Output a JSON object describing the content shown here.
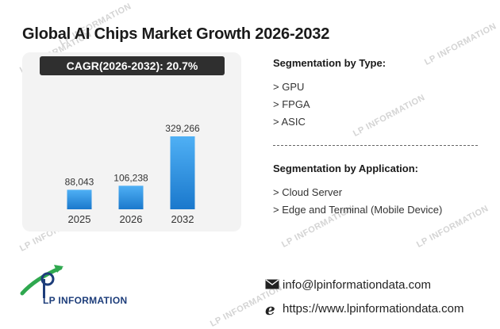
{
  "title": "Global AI Chips Market Growth 2026-2032",
  "cagr_label": "CAGR(2026-2032):  20.7%",
  "chart_data": {
    "type": "bar",
    "categories": [
      "2025",
      "2026",
      "2032"
    ],
    "values": [
      88043,
      106238,
      329266
    ],
    "value_labels": [
      "88,043",
      "106,238",
      "329,266"
    ],
    "title": "Global AI Chips Market Growth 2026-2032",
    "xlabel": "",
    "ylabel": "",
    "grid": false,
    "bar_color": "#2a8ce0"
  },
  "segmentation_type": {
    "title": "Segmentation by Type:",
    "items": [
      "> GPU",
      "> FPGA",
      "> ASIC"
    ]
  },
  "segmentation_application": {
    "title": "Segmentation by Application:",
    "items": [
      "> Cloud Server",
      "> Edge and Terminal (Mobile Device)"
    ]
  },
  "watermark_text": "LP INFORMATION",
  "logo": {
    "text": "LP INFORMATION"
  },
  "contact": {
    "email": "info@lpinformationdata.com",
    "website": "https://www.lpinformationdata.com",
    "email_icon": "envelope-icon",
    "web_icon": "browser-e-icon"
  }
}
